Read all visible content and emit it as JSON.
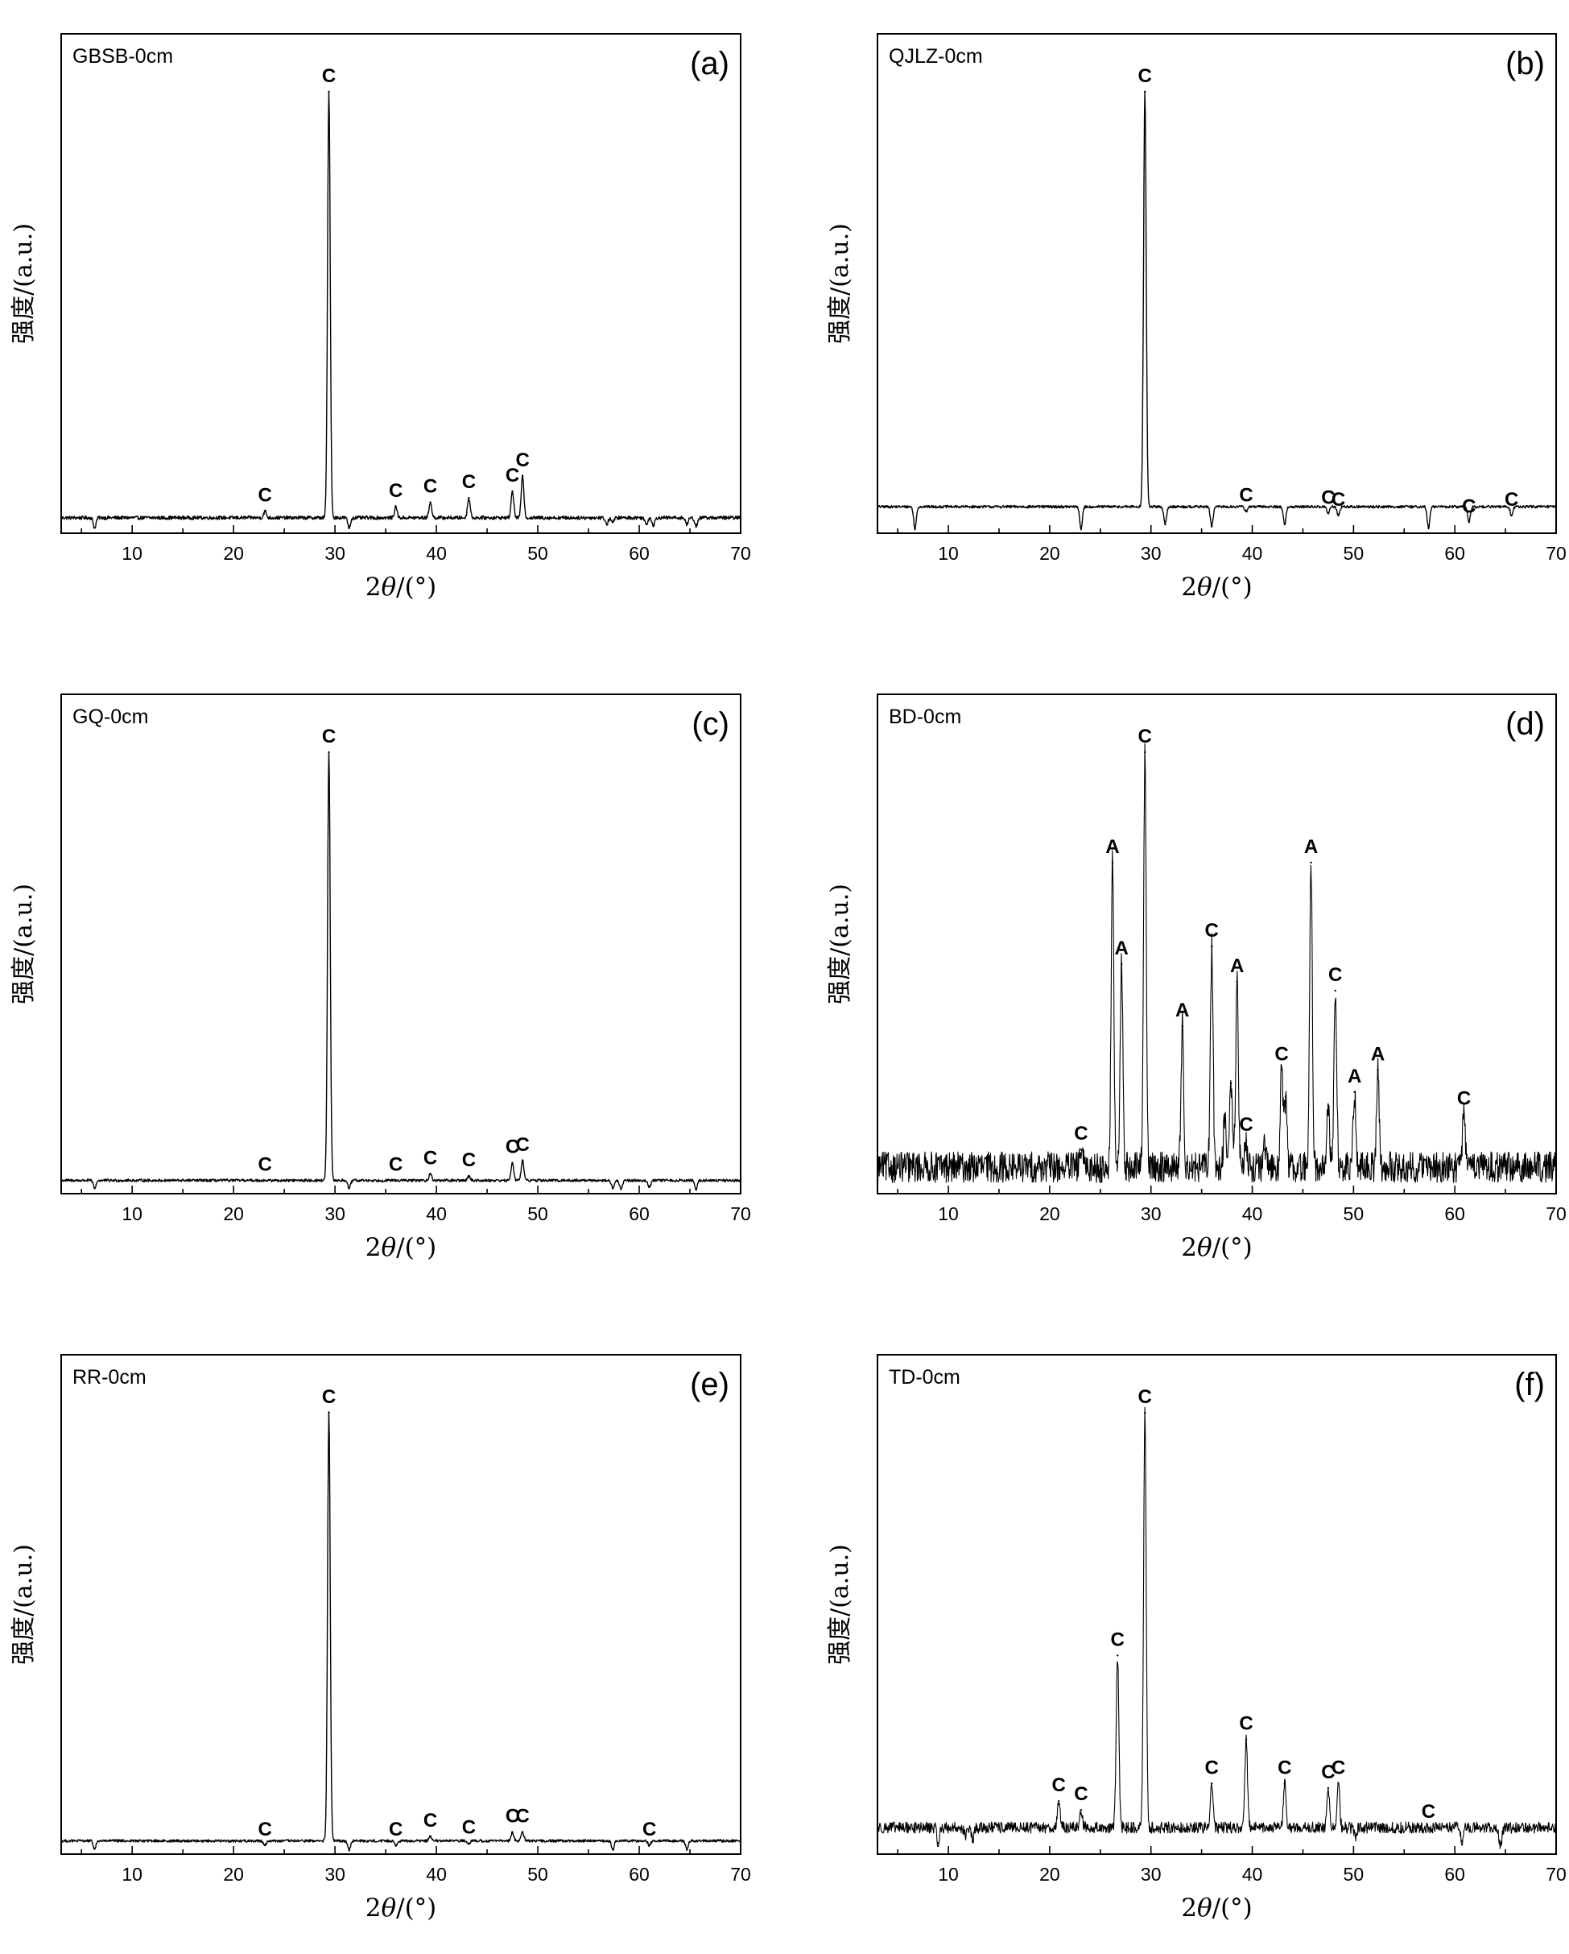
{
  "figure": {
    "xlabel_prefix": "2",
    "xlabel_theta": "θ",
    "xlabel_suffix": "/(°)",
    "ylabel": "强度/(a.u.)",
    "xticks": [
      "10",
      "20",
      "30",
      "40",
      "50",
      "60",
      "70"
    ]
  },
  "chart_data": [
    {
      "type": "line",
      "panel": "(a)",
      "sample": "GBSB-0cm",
      "xlabel": "2θ/(°)",
      "ylabel": "强度/(a.u.)",
      "xlim": [
        3,
        70
      ],
      "ylim": [
        0,
        1.0
      ],
      "baseline": 0.035,
      "noise": 0.004,
      "line_color": "#000000",
      "peaks": [
        {
          "x": 6.3,
          "y": 0.012,
          "label": ""
        },
        {
          "x": 23.1,
          "y": 0.05,
          "label": "C"
        },
        {
          "x": 29.4,
          "y": 1.0,
          "label": "C"
        },
        {
          "x": 31.4,
          "y": 0.012,
          "label": ""
        },
        {
          "x": 36.0,
          "y": 0.06,
          "label": "C"
        },
        {
          "x": 39.4,
          "y": 0.07,
          "label": "C"
        },
        {
          "x": 43.2,
          "y": 0.08,
          "label": "C"
        },
        {
          "x": 47.5,
          "y": 0.095,
          "label": "C"
        },
        {
          "x": 48.5,
          "y": 0.13,
          "label": "C"
        },
        {
          "x": 56.8,
          "y": 0.02,
          "label": ""
        },
        {
          "x": 57.4,
          "y": 0.025,
          "label": ""
        },
        {
          "x": 60.7,
          "y": 0.02,
          "label": ""
        },
        {
          "x": 61.4,
          "y": 0.018,
          "label": ""
        },
        {
          "x": 64.7,
          "y": 0.02,
          "label": ""
        },
        {
          "x": 65.6,
          "y": 0.015,
          "label": ""
        }
      ]
    },
    {
      "type": "line",
      "panel": "(b)",
      "sample": "QJLZ-0cm",
      "xlabel": "2θ/(°)",
      "ylabel": "强度/(a.u.)",
      "xlim": [
        3,
        70
      ],
      "ylim": [
        0,
        1.0
      ],
      "baseline": 0.06,
      "noise": 0.003,
      "line_color": "#000000",
      "peaks": [
        {
          "x": 6.7,
          "y": 0.01,
          "label": ""
        },
        {
          "x": 23.1,
          "y": 0.01,
          "label": ""
        },
        {
          "x": 29.4,
          "y": 1.0,
          "label": "C"
        },
        {
          "x": 31.4,
          "y": 0.02,
          "label": ""
        },
        {
          "x": 36.0,
          "y": 0.015,
          "label": ""
        },
        {
          "x": 39.4,
          "y": 0.05,
          "label": "C"
        },
        {
          "x": 43.2,
          "y": 0.02,
          "label": ""
        },
        {
          "x": 47.5,
          "y": 0.045,
          "label": "C"
        },
        {
          "x": 48.5,
          "y": 0.04,
          "label": "C"
        },
        {
          "x": 57.4,
          "y": 0.012,
          "label": ""
        },
        {
          "x": 61.4,
          "y": 0.025,
          "label": "C"
        },
        {
          "x": 65.6,
          "y": 0.04,
          "label": "C"
        }
      ]
    },
    {
      "type": "line",
      "panel": "(c)",
      "sample": "GQ-0cm",
      "xlabel": "2θ/(°)",
      "ylabel": "强度/(a.u.)",
      "xlim": [
        3,
        70
      ],
      "ylim": [
        0,
        1.0
      ],
      "baseline": 0.03,
      "noise": 0.003,
      "line_color": "#000000",
      "peaks": [
        {
          "x": 6.3,
          "y": 0.012,
          "label": ""
        },
        {
          "x": 23.1,
          "y": 0.03,
          "label": "C"
        },
        {
          "x": 29.4,
          "y": 1.0,
          "label": "C"
        },
        {
          "x": 31.4,
          "y": 0.012,
          "label": ""
        },
        {
          "x": 36.0,
          "y": 0.03,
          "label": "C"
        },
        {
          "x": 39.4,
          "y": 0.045,
          "label": "C"
        },
        {
          "x": 43.2,
          "y": 0.04,
          "label": "C"
        },
        {
          "x": 47.5,
          "y": 0.07,
          "label": "C"
        },
        {
          "x": 48.5,
          "y": 0.075,
          "label": "C"
        },
        {
          "x": 57.4,
          "y": 0.012,
          "label": ""
        },
        {
          "x": 58.2,
          "y": 0.01,
          "label": ""
        },
        {
          "x": 61.0,
          "y": 0.015,
          "label": ""
        },
        {
          "x": 65.6,
          "y": 0.01,
          "label": ""
        }
      ]
    },
    {
      "type": "line",
      "panel": "(d)",
      "sample": "BD-0cm",
      "xlabel": "2θ/(°)",
      "ylabel": "强度/(a.u.)",
      "xlim": [
        3,
        70
      ],
      "ylim": [
        0,
        1.0
      ],
      "baseline": 0.06,
      "noise": 0.035,
      "line_color": "#000000",
      "peaks": [
        {
          "x": 23.1,
          "y": 0.1,
          "label": "C"
        },
        {
          "x": 26.2,
          "y": 0.75,
          "label": "A"
        },
        {
          "x": 27.1,
          "y": 0.52,
          "label": "A"
        },
        {
          "x": 29.4,
          "y": 1.0,
          "label": "C"
        },
        {
          "x": 33.1,
          "y": 0.38,
          "label": "A"
        },
        {
          "x": 36.0,
          "y": 0.56,
          "label": "C"
        },
        {
          "x": 37.3,
          "y": 0.18,
          "label": ""
        },
        {
          "x": 37.9,
          "y": 0.25,
          "label": ""
        },
        {
          "x": 38.5,
          "y": 0.48,
          "label": "A"
        },
        {
          "x": 39.4,
          "y": 0.12,
          "label": "C"
        },
        {
          "x": 41.2,
          "y": 0.1,
          "label": ""
        },
        {
          "x": 42.9,
          "y": 0.28,
          "label": "C"
        },
        {
          "x": 43.3,
          "y": 0.22,
          "label": ""
        },
        {
          "x": 45.8,
          "y": 0.75,
          "label": "A"
        },
        {
          "x": 47.5,
          "y": 0.2,
          "label": ""
        },
        {
          "x": 48.2,
          "y": 0.46,
          "label": "C"
        },
        {
          "x": 50.1,
          "y": 0.23,
          "label": "A"
        },
        {
          "x": 52.4,
          "y": 0.28,
          "label": "A"
        },
        {
          "x": 60.9,
          "y": 0.18,
          "label": "C"
        },
        {
          "x": 61.8,
          "y": 0.08,
          "label": ""
        },
        {
          "x": 63.3,
          "y": 0.06,
          "label": ""
        },
        {
          "x": 66.0,
          "y": 0.06,
          "label": ""
        }
      ]
    },
    {
      "type": "line",
      "panel": "(e)",
      "sample": "RR-0cm",
      "xlabel": "2θ/(°)",
      "ylabel": "强度/(a.u.)",
      "xlim": [
        3,
        70
      ],
      "ylim": [
        0,
        1.0
      ],
      "baseline": 0.03,
      "noise": 0.003,
      "line_color": "#000000",
      "peaks": [
        {
          "x": 6.3,
          "y": 0.012,
          "label": ""
        },
        {
          "x": 23.1,
          "y": 0.02,
          "label": "C"
        },
        {
          "x": 29.4,
          "y": 1.0,
          "label": "C"
        },
        {
          "x": 31.4,
          "y": 0.01,
          "label": ""
        },
        {
          "x": 36.0,
          "y": 0.02,
          "label": "C"
        },
        {
          "x": 39.4,
          "y": 0.04,
          "label": "C"
        },
        {
          "x": 43.2,
          "y": 0.025,
          "label": "C"
        },
        {
          "x": 47.5,
          "y": 0.05,
          "label": "C"
        },
        {
          "x": 48.5,
          "y": 0.05,
          "label": "C"
        },
        {
          "x": 57.4,
          "y": 0.01,
          "label": ""
        },
        {
          "x": 61.0,
          "y": 0.02,
          "label": "C"
        },
        {
          "x": 64.7,
          "y": 0.01,
          "label": ""
        }
      ]
    },
    {
      "type": "line",
      "panel": "(f)",
      "sample": "TD-0cm",
      "xlabel": "2θ/(°)",
      "ylabel": "强度/(a.u.)",
      "xlim": [
        3,
        70
      ],
      "ylim": [
        0,
        1.0
      ],
      "baseline": 0.06,
      "noise": 0.013,
      "line_color": "#000000",
      "peaks": [
        {
          "x": 9.0,
          "y": 0.025,
          "label": ""
        },
        {
          "x": 11.7,
          "y": 0.04,
          "label": ""
        },
        {
          "x": 12.4,
          "y": 0.03,
          "label": ""
        },
        {
          "x": 20.9,
          "y": 0.12,
          "label": "C"
        },
        {
          "x": 23.1,
          "y": 0.1,
          "label": "C"
        },
        {
          "x": 26.7,
          "y": 0.45,
          "label": "C"
        },
        {
          "x": 29.4,
          "y": 1.0,
          "label": "C"
        },
        {
          "x": 36.0,
          "y": 0.16,
          "label": "C"
        },
        {
          "x": 39.4,
          "y": 0.26,
          "label": "C"
        },
        {
          "x": 43.2,
          "y": 0.16,
          "label": "C"
        },
        {
          "x": 47.5,
          "y": 0.15,
          "label": "C"
        },
        {
          "x": 48.5,
          "y": 0.16,
          "label": "C"
        },
        {
          "x": 50.2,
          "y": 0.04,
          "label": ""
        },
        {
          "x": 57.4,
          "y": 0.06,
          "label": "C"
        },
        {
          "x": 60.7,
          "y": 0.03,
          "label": ""
        },
        {
          "x": 64.5,
          "y": 0.02,
          "label": ""
        }
      ]
    }
  ]
}
